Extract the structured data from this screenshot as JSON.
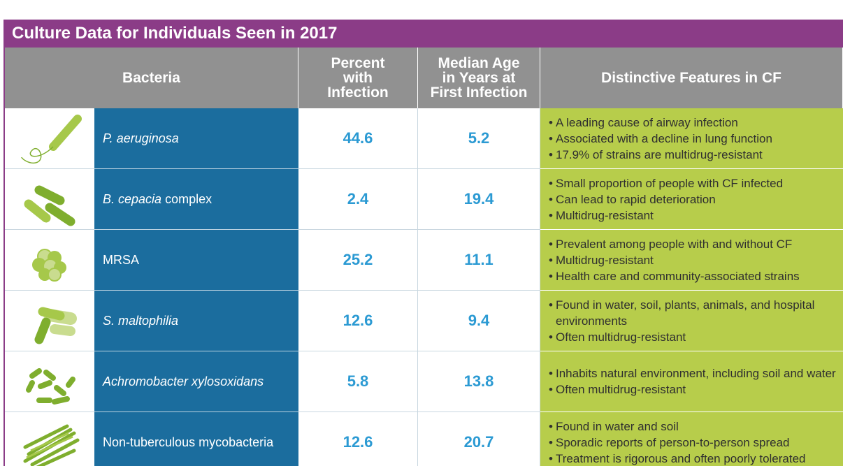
{
  "title": "Culture Data for Individuals Seen in 2017",
  "header": [
    [
      "Bacteria"
    ],
    [
      "Percent",
      "with",
      "Infection"
    ],
    [
      "Median Age",
      "in Years at",
      "First Infection"
    ],
    [
      "Distinctive Features in CF"
    ]
  ],
  "rows": [
    {
      "name": [
        {
          "text": "P. aeruginosa",
          "italic": true
        }
      ],
      "percent": 44.6,
      "median_age": 5.2,
      "features": [
        "A leading cause of airway infection",
        "Associated with a decline in lung function",
        "17.9% of strains are multidrug-resistant"
      ]
    },
    {
      "name": [
        {
          "text": "B. cepacia",
          "italic": true
        },
        {
          "text": " complex",
          "italic": false
        }
      ],
      "percent": 2.4,
      "median_age": 19.4,
      "features": [
        "Small proportion of people with CF infected",
        "Can lead to rapid deterioration",
        "Multidrug-resistant"
      ]
    },
    {
      "name": [
        {
          "text": "MRSA",
          "italic": false
        }
      ],
      "percent": 25.2,
      "median_age": 11.1,
      "features": [
        "Prevalent among people with and without CF",
        "Multidrug-resistant",
        "Health care and community-associated strains"
      ]
    },
    {
      "name": [
        {
          "text": "S. maltophilia",
          "italic": true
        }
      ],
      "percent": 12.6,
      "median_age": 9.4,
      "features": [
        "Found in water, soil, plants, animals, and hospital environments",
        "Often multidrug-resistant"
      ]
    },
    {
      "name": [
        {
          "text": "Achromobacter xylosoxidans",
          "italic": true
        }
      ],
      "percent": 5.8,
      "median_age": 13.8,
      "features": [
        "Inhabits natural environment, including soil and water",
        "Often multidrug-resistant"
      ]
    },
    {
      "name": [
        {
          "text": "Non-tuberculous mycobacteria",
          "italic": false
        }
      ],
      "percent": 12.6,
      "median_age": 20.7,
      "features": [
        "Found in water and soil",
        "Sporadic reports of person-to-person spread",
        "Treatment is rigorous and often poorly tolerated"
      ]
    }
  ]
}
